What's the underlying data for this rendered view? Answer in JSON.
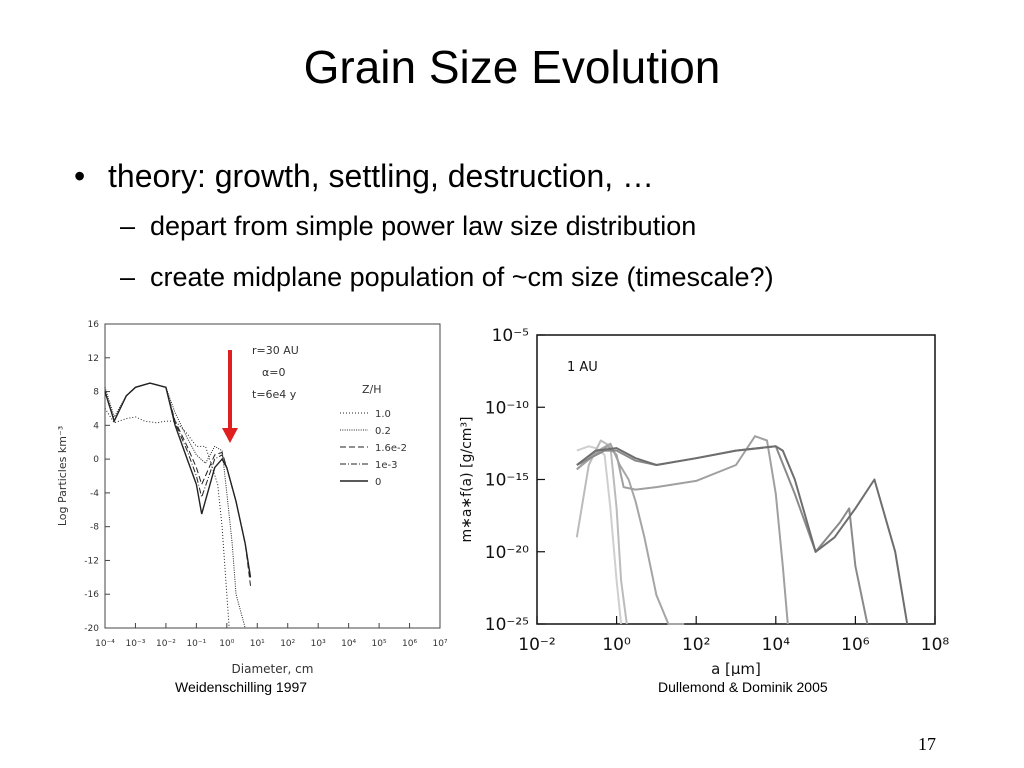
{
  "slide": {
    "title": "Grain Size Evolution",
    "bullet": "theory: growth, settling, destruction, …",
    "subbullets": [
      "depart from simple power law size distribution",
      "create midplane population of ~cm size (timescale?)"
    ],
    "captions": [
      "Weidenschilling 1997",
      "Dullemond & Dominik 2005"
    ],
    "page_number": "17",
    "arrow_color": "#e02020"
  },
  "chart_data": [
    {
      "type": "line",
      "title": "",
      "xlabel": "Diameter, cm",
      "ylabel": "Log Particles km⁻³",
      "x_scale": "log",
      "xlim": [
        0.0001,
        10000000
      ],
      "ylim": [
        -20,
        16
      ],
      "x_ticks": [
        "10⁻⁴",
        "10⁻³",
        "10⁻²",
        "10⁻¹",
        "10⁰",
        "10¹",
        "10²",
        "10³",
        "10⁴",
        "10⁵",
        "10⁶",
        "10⁷"
      ],
      "y_ticks": [
        "16",
        "12",
        "8",
        "4",
        "0",
        "-4",
        "-8",
        "-12",
        "-16",
        "-20"
      ],
      "annotations": [
        "r=30 AU",
        "α=0",
        "t=6e4 y"
      ],
      "legend_title": "Z/H",
      "legend_position": "right",
      "series": [
        {
          "name": "1.0",
          "dash": "1,2",
          "x": [
            0.0001,
            0.0002,
            0.0005,
            0.001,
            0.002,
            0.005,
            0.01,
            0.02,
            0.05,
            0.1,
            0.2,
            0.5,
            0.7,
            1,
            1.2
          ],
          "y": [
            6,
            4.3,
            4.8,
            5,
            4.5,
            4.3,
            4.5,
            4.5,
            3,
            1.5,
            1.5,
            -3,
            -8,
            -16,
            -20
          ]
        },
        {
          "name": "0.2",
          "dash": "1,1.3",
          "x": [
            0.0001,
            0.0002,
            0.0005,
            0.001,
            0.003,
            0.01,
            0.02,
            0.05,
            0.1,
            0.2,
            0.4,
            0.7,
            1,
            1.5,
            2,
            4
          ],
          "y": [
            8.5,
            5,
            7.5,
            8.5,
            9,
            8.5,
            5.5,
            2.5,
            0.5,
            -0.5,
            1.5,
            1,
            -4,
            -10,
            -16,
            -20
          ]
        },
        {
          "name": "1.6e-2",
          "dash": "6,3",
          "x": [
            0.0001,
            0.0002,
            0.0005,
            0.001,
            0.003,
            0.01,
            0.02,
            0.05,
            0.1,
            0.15,
            0.4,
            0.7,
            1,
            2,
            4,
            6
          ],
          "y": [
            8,
            4.5,
            7.5,
            8.5,
            9,
            8.5,
            4.5,
            1.5,
            -1,
            -3,
            0.5,
            0.8,
            -1,
            -5,
            -10,
            -15
          ]
        },
        {
          "name": "1e-3",
          "dash": "6,2,1,2",
          "x": [
            0.0001,
            0.0002,
            0.0005,
            0.001,
            0.003,
            0.01,
            0.02,
            0.05,
            0.1,
            0.15,
            0.4,
            0.7,
            1,
            2,
            4,
            6
          ],
          "y": [
            8,
            4.5,
            7.5,
            8.5,
            9,
            8.5,
            4.3,
            1,
            -2,
            -4.5,
            0,
            0.5,
            -1,
            -5,
            -10,
            -14
          ]
        },
        {
          "name": "0",
          "dash": "",
          "x": [
            0.0001,
            0.0002,
            0.0005,
            0.001,
            0.003,
            0.01,
            0.02,
            0.05,
            0.1,
            0.15,
            0.4,
            0.7,
            1,
            2,
            4,
            6
          ],
          "y": [
            8,
            4.5,
            7.5,
            8.5,
            9,
            8.5,
            4,
            0,
            -3,
            -6.5,
            -1,
            0,
            -1,
            -5,
            -10,
            -14
          ]
        }
      ]
    },
    {
      "type": "line",
      "title": "",
      "xlabel": "a [μm]",
      "ylabel": "m∗a∗f(a) [g/cm³]",
      "x_scale": "log",
      "y_scale": "log",
      "xlim": [
        0.01,
        100000000
      ],
      "ylim": [
        1e-25,
        1e-05
      ],
      "x_ticks": [
        "10⁻²",
        "10⁰",
        "10²",
        "10⁴",
        "10⁶",
        "10⁸"
      ],
      "y_ticks": [
        "10⁻⁵",
        "10⁻¹⁰",
        "10⁻¹⁵",
        "10⁻²⁰",
        "10⁻²⁵"
      ],
      "annotations": [
        "1 AU"
      ],
      "series": [
        {
          "color": "#cfcfcf",
          "x": [
            0.1,
            0.2,
            0.3,
            0.5,
            0.7,
            1,
            1.3
          ],
          "y": [
            1e-13,
            2e-13,
            1.5e-13,
            5e-14,
            1e-17,
            1e-22,
            1e-25
          ]
        },
        {
          "color": "#bbbbbb",
          "x": [
            0.1,
            0.2,
            0.4,
            0.7,
            1,
            1.3,
            1.8
          ],
          "y": [
            1e-19,
            1e-14,
            5e-13,
            2e-13,
            1e-17,
            1e-22,
            1e-25
          ]
        },
        {
          "color": "#a5a5a5",
          "x": [
            0.1,
            0.3,
            0.7,
            1.2,
            2,
            3,
            5,
            10,
            20,
            50
          ],
          "y": [
            5e-15,
            8e-14,
            3e-13,
            1e-14,
            1e-15,
            3e-17,
            1e-19,
            1e-23,
            1e-25,
            1e-25
          ]
        },
        {
          "color": "#a0a0a0",
          "x": [
            0.1,
            0.3,
            0.6,
            1,
            1.5,
            3,
            10,
            100,
            1000,
            3000,
            6000,
            10000,
            15000,
            20000
          ],
          "y": [
            5e-15,
            6e-14,
            2e-13,
            5e-14,
            3e-16,
            2e-16,
            3e-16,
            8e-16,
            1e-14,
            1e-12,
            5e-13,
            1e-16,
            1e-21,
            1e-25
          ]
        },
        {
          "color": "#8a8a8a",
          "x": [
            0.1,
            0.5,
            1,
            3,
            10,
            100,
            1000,
            10000,
            30000,
            100000,
            200000,
            400000,
            700000,
            1000000,
            2000000
          ],
          "y": [
            1e-14,
            1e-13,
            1e-13,
            2e-14,
            1e-14,
            3e-14,
            1e-13,
            2e-13,
            1e-16,
            1e-20,
            1e-19,
            1e-18,
            1e-17,
            1e-21,
            1e-25
          ]
        },
        {
          "color": "#6e6e6e",
          "x": [
            0.1,
            0.3,
            1,
            3,
            10,
            100,
            1000,
            10000,
            15000,
            30000,
            100000,
            300000,
            1000000,
            3000000,
            10000000,
            20000000
          ],
          "y": [
            1e-14,
            1e-13,
            1.5e-13,
            3e-14,
            1e-14,
            3e-14,
            1e-13,
            2e-13,
            1e-13,
            1e-15,
            1e-20,
            1e-19,
            1e-17,
            1e-15,
            1e-20,
            1e-25
          ]
        }
      ]
    }
  ]
}
